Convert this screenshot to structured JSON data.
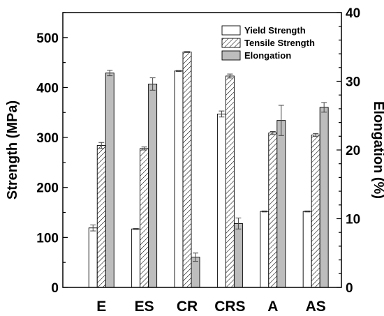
{
  "chart_data": {
    "type": "bar",
    "categories": [
      "E",
      "ES",
      "CR",
      "CRS",
      "A",
      "AS"
    ],
    "series": [
      {
        "name": "Yield Strength",
        "axis": "left",
        "fill": "white",
        "values": [
          119,
          117,
          433,
          347,
          152,
          152
        ],
        "errors": [
          6,
          1,
          1,
          6,
          1,
          1
        ]
      },
      {
        "name": "Tensile Strength",
        "axis": "left",
        "fill": "hatch",
        "values": [
          284,
          278,
          471,
          423,
          309,
          305
        ],
        "errors": [
          6,
          3,
          1,
          4,
          3,
          3
        ]
      },
      {
        "name": "Elongation",
        "axis": "right",
        "fill": "#bdbdbd",
        "values": [
          31.2,
          29.6,
          4.4,
          9.3,
          24.3,
          26.2
        ],
        "errors": [
          0.4,
          0.9,
          0.6,
          0.8,
          2.2,
          0.7
        ]
      }
    ],
    "ylabel": "Strength (MPa)",
    "ylabel_right": "Elongation (%)",
    "ylim": [
      0,
      550
    ],
    "yticks": [
      0,
      100,
      200,
      300,
      400,
      500
    ],
    "ylim_right": [
      0,
      40
    ],
    "yticks_right": [
      0,
      10,
      20,
      30,
      40
    ],
    "legend_position": "top-right",
    "grid": false
  }
}
